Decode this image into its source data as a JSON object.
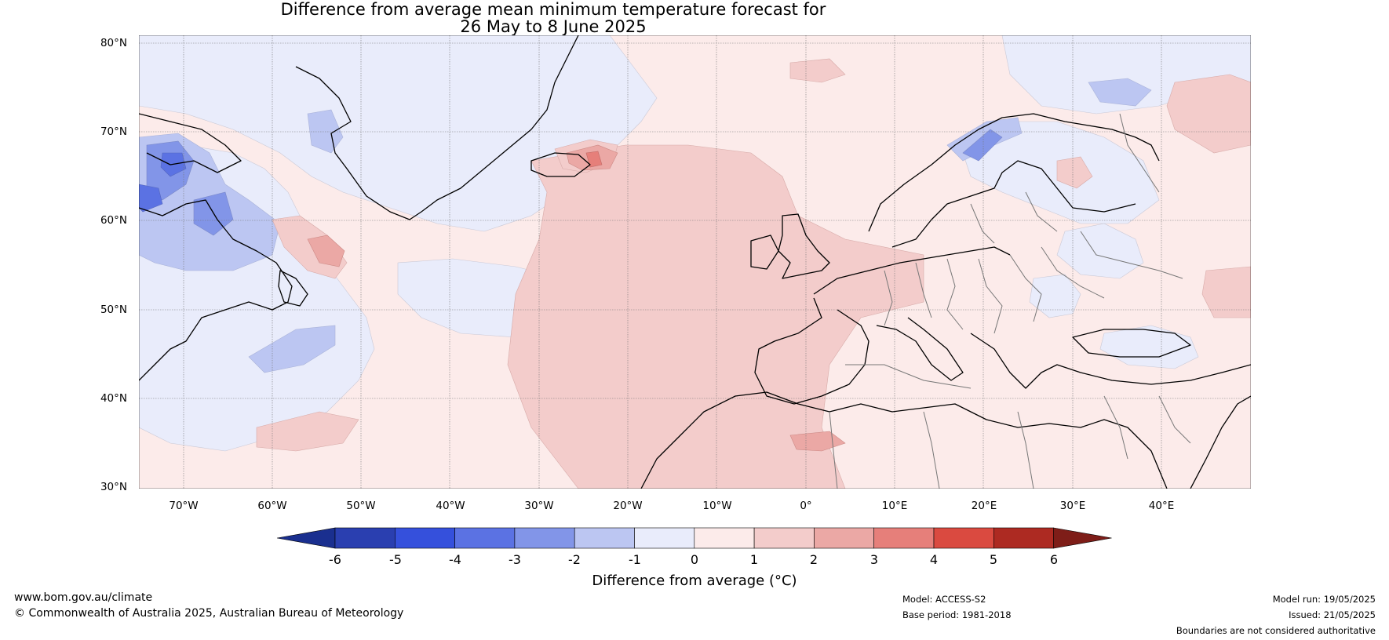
{
  "title_line1": "Difference from average mean minimum temperature forecast for",
  "title_line2": "26 May to 8 June 2025",
  "lat_labels": [
    "80°N",
    "70°N",
    "60°N",
    "50°N",
    "40°N",
    "30°N"
  ],
  "lon_labels": [
    "70°W",
    "60°W",
    "50°W",
    "40°W",
    "30°W",
    "20°W",
    "10°W",
    "0°",
    "10°E",
    "20°E",
    "30°E",
    "40°E"
  ],
  "colorbar": {
    "ticks": [
      "-6",
      "-5",
      "-4",
      "-3",
      "-2",
      "-1",
      "0",
      "1",
      "2",
      "3",
      "4",
      "5",
      "6"
    ],
    "label": "Difference from average (°C)",
    "colors": [
      "#1a2f8f",
      "#2a3fb0",
      "#3550dc",
      "#5b72e3",
      "#8295e8",
      "#bcc6f2",
      "#e9ecfb",
      "#fcebea",
      "#f3cccb",
      "#eba8a5",
      "#e67f7a",
      "#da4a40",
      "#ad2a22",
      "#7e1d18"
    ]
  },
  "footer": {
    "website": "www.bom.gov.au/climate",
    "copyright": "© Commonwealth of Australia 2025, Australian Bureau of Meteorology",
    "model": "Model: ACCESS-S2",
    "base_period": "Base period: 1981-2018",
    "model_run": "Model run: 19/05/2025",
    "issued": "Issued: 21/05/2025",
    "disclaimer": "Boundaries are not considered authoritative"
  }
}
